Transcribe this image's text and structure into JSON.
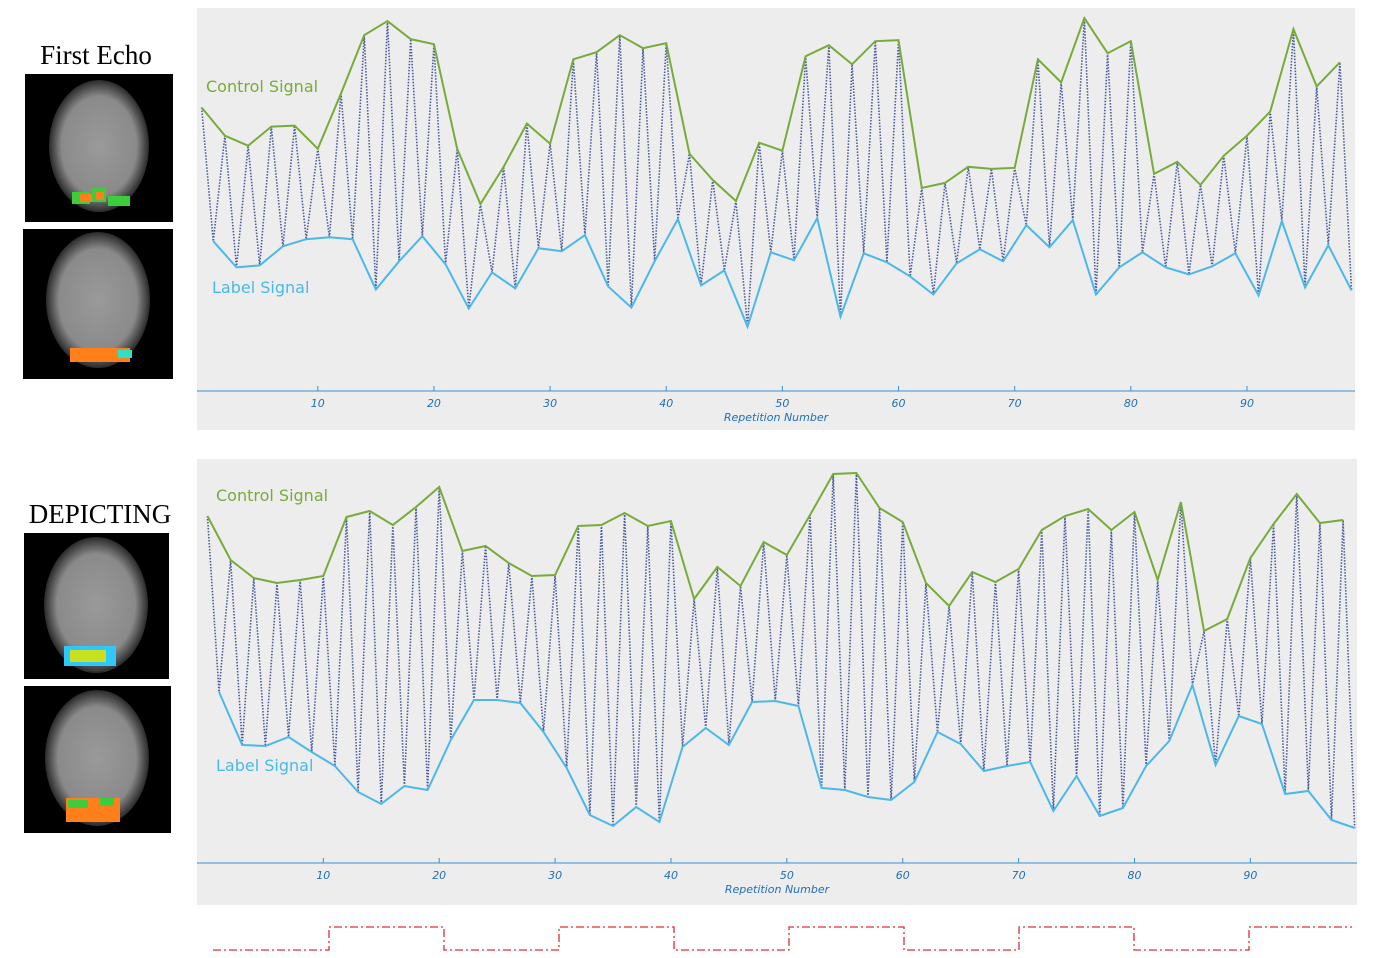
{
  "panels": [
    {
      "label": "First Echo"
    },
    {
      "label": "DEPICTING"
    }
  ],
  "chart_data": [
    {
      "type": "line",
      "x_label": "Repetition Number",
      "xlim": [
        -0.4,
        99.3
      ],
      "ylim": [
        0,
        381
      ],
      "xticks": [
        10,
        20,
        30,
        40,
        50,
        60,
        70,
        80,
        90
      ],
      "series": [
        {
          "name": "Control Signal",
          "color": "#77ab3a",
          "x": [
            0,
            2,
            4,
            6,
            8,
            10,
            12,
            14,
            16,
            18,
            20,
            22,
            24,
            26,
            28,
            30,
            32,
            34,
            36,
            38,
            40,
            42,
            44,
            46,
            48,
            50,
            52,
            54,
            56,
            58,
            60,
            62,
            64,
            66,
            68,
            70,
            72,
            74,
            76,
            78,
            80,
            82,
            84,
            86,
            88,
            90,
            92,
            94,
            96,
            98
          ],
          "values": [
            282,
            254,
            244,
            263,
            264,
            241,
            296,
            354,
            368,
            350,
            345,
            241,
            186,
            223,
            266,
            246,
            330,
            337,
            354,
            341,
            346,
            236,
            210,
            189,
            247,
            239,
            333,
            344,
            325,
            348,
            349,
            202,
            207,
            223,
            221,
            222,
            330,
            307,
            371,
            336,
            348,
            216,
            228,
            205,
            234,
            254,
            278,
            360,
            303,
            327
          ]
        },
        {
          "name": "Label Signal",
          "color": "#4bb8e8",
          "x": [
            1,
            3,
            5,
            7,
            9,
            11,
            13,
            15,
            17,
            19,
            21,
            23,
            25,
            27,
            29,
            31,
            33,
            35,
            37,
            39,
            41,
            43,
            45,
            47,
            49,
            51,
            53,
            55,
            57,
            59,
            61,
            63,
            65,
            67,
            69,
            71,
            73,
            75,
            77,
            79,
            81,
            83,
            85,
            87,
            89,
            91,
            93,
            95,
            97,
            99
          ],
          "values": [
            149,
            123,
            125,
            144,
            151,
            153,
            151,
            101,
            129,
            154,
            126,
            82,
            118,
            102,
            142,
            139,
            155,
            104,
            83,
            129,
            171,
            105,
            120,
            64,
            138,
            130,
            172,
            74,
            137,
            128,
            114,
            96,
            127,
            141,
            129,
            165,
            143,
            170,
            96,
            123,
            138,
            123,
            116,
            124,
            137,
            95,
            169,
            103,
            145,
            100
          ]
        }
      ]
    },
    {
      "type": "line",
      "x_label": "Repetition Number",
      "xlim": [
        -0.9,
        99.2
      ],
      "ylim": [
        0,
        404
      ],
      "xticks": [
        10,
        20,
        30,
        40,
        50,
        60,
        70,
        80,
        90
      ],
      "series": [
        {
          "name": "Control Signal",
          "color": "#77ab3a",
          "x": [
            0,
            2,
            4,
            6,
            8,
            10,
            12,
            14,
            16,
            18,
            20,
            22,
            24,
            26,
            28,
            30,
            32,
            34,
            36,
            38,
            40,
            42,
            44,
            46,
            48,
            50,
            52,
            54,
            56,
            58,
            60,
            62,
            64,
            66,
            68,
            70,
            72,
            74,
            76,
            78,
            80,
            82,
            84,
            86,
            88,
            90,
            92,
            94,
            96,
            98
          ],
          "values": [
            347,
            303,
            285,
            280,
            283,
            287,
            346,
            352,
            338,
            356,
            376,
            312,
            317,
            300,
            287,
            288,
            337,
            338,
            350,
            337,
            342,
            264,
            296,
            277,
            321,
            308,
            348,
            389,
            390,
            355,
            341,
            280,
            257,
            291,
            281,
            294,
            333,
            347,
            354,
            333,
            351,
            283,
            361,
            232,
            244,
            305,
            339,
            369,
            340,
            343
          ]
        },
        {
          "name": "Label Signal",
          "color": "#4bb8e8",
          "x": [
            1,
            3,
            5,
            7,
            9,
            11,
            13,
            15,
            17,
            19,
            21,
            23,
            25,
            27,
            29,
            31,
            33,
            35,
            37,
            39,
            41,
            43,
            45,
            47,
            49,
            51,
            53,
            55,
            57,
            59,
            61,
            63,
            65,
            67,
            69,
            71,
            73,
            75,
            77,
            79,
            81,
            83,
            85,
            87,
            89,
            91,
            93,
            95,
            97,
            99
          ],
          "values": [
            171,
            118,
            117,
            126,
            111,
            97,
            71,
            59,
            77,
            73,
            123,
            163,
            163,
            160,
            131,
            95,
            48,
            37,
            56,
            41,
            116,
            135,
            118,
            161,
            162,
            157,
            75,
            73,
            66,
            63,
            81,
            131,
            119,
            92,
            97,
            101,
            52,
            87,
            47,
            55,
            97,
            122,
            178,
            98,
            147,
            139,
            69,
            72,
            43,
            35
          ]
        }
      ]
    }
  ]
}
